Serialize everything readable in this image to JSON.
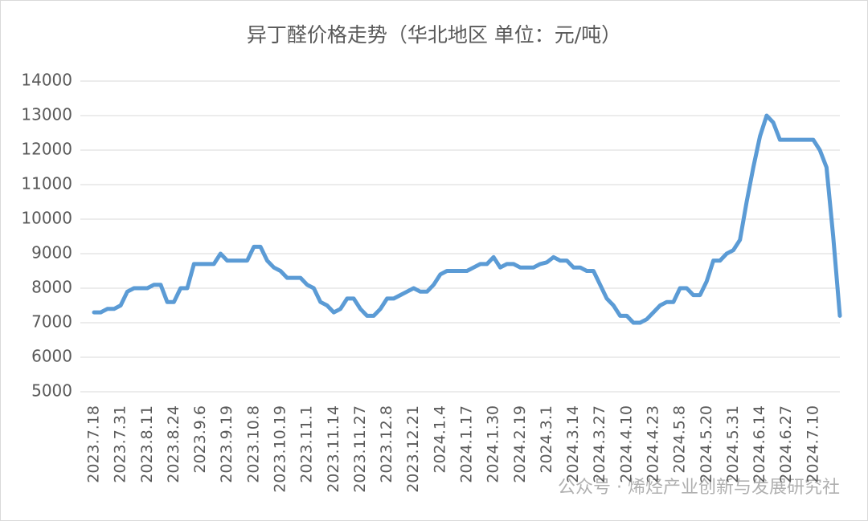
{
  "chart_data": {
    "type": "line",
    "title": "异丁醛价格走势（华北地区 单位：元/吨）",
    "categories": [
      "2023.7.18",
      null,
      null,
      null,
      "2023.7.31",
      null,
      null,
      null,
      "2023.8.11",
      null,
      null,
      null,
      "2023.8.24",
      null,
      null,
      null,
      "2023.9.6",
      null,
      null,
      null,
      "2023.9.19",
      null,
      null,
      null,
      "2023.10.8",
      null,
      null,
      null,
      "2023.10.19",
      null,
      null,
      null,
      "2023.11.1",
      null,
      null,
      null,
      "2023.11.14",
      null,
      null,
      null,
      "2023.11.27",
      null,
      null,
      null,
      "2023.12.8",
      null,
      null,
      null,
      "2023.12.21",
      null,
      null,
      null,
      "2024.1.4",
      null,
      null,
      null,
      "2024.1.17",
      null,
      null,
      null,
      "2024.1.30",
      null,
      null,
      null,
      "2024.2.19",
      null,
      null,
      null,
      "2024.3.1",
      null,
      null,
      null,
      "2024.3.14",
      null,
      null,
      null,
      "2024.3.27",
      null,
      null,
      null,
      "2024.4.10",
      null,
      null,
      null,
      "2024.4.23",
      null,
      null,
      null,
      "2024.5.8",
      null,
      null,
      null,
      "2024.5.20",
      null,
      null,
      null,
      "2024.5.31",
      null,
      null,
      null,
      "2024.6.14",
      null,
      null,
      null,
      "2024.6.27",
      null,
      null,
      null,
      "2024.7.10",
      null,
      null,
      null,
      null
    ],
    "series": [
      {
        "name": "异丁醛",
        "color": "#5b9bd5",
        "values": [
          7300,
          7300,
          7400,
          7400,
          7500,
          7900,
          8000,
          8000,
          8000,
          8100,
          8100,
          7600,
          7600,
          8000,
          8000,
          8700,
          8700,
          8700,
          8700,
          9000,
          8800,
          8800,
          8800,
          8800,
          9200,
          9200,
          8800,
          8600,
          8500,
          8300,
          8300,
          8300,
          8100,
          8000,
          7600,
          7500,
          7300,
          7400,
          7700,
          7700,
          7400,
          7200,
          7200,
          7400,
          7700,
          7700,
          7800,
          7900,
          8000,
          7900,
          7900,
          8100,
          8400,
          8500,
          8500,
          8500,
          8500,
          8600,
          8700,
          8700,
          8900,
          8600,
          8700,
          8700,
          8600,
          8600,
          8600,
          8700,
          8750,
          8900,
          8800,
          8800,
          8600,
          8600,
          8500,
          8500,
          8100,
          7700,
          7500,
          7200,
          7200,
          7000,
          7000,
          7100,
          7300,
          7500,
          7600,
          7600,
          8000,
          8000,
          7800,
          7800,
          8200,
          8800,
          8800,
          9000,
          9100,
          9400,
          10500,
          11500,
          12400,
          13000,
          12800,
          12300,
          12300,
          12300,
          12300,
          12300,
          12300,
          12000,
          11500,
          9500,
          7200
        ]
      }
    ],
    "ylim": [
      5000,
      14000
    ],
    "yticks": [
      5000,
      6000,
      7000,
      8000,
      9000,
      10000,
      11000,
      12000,
      13000,
      14000
    ],
    "grid": true,
    "watermark": "公众号 · 烯烃产业创新与发展研究社"
  }
}
